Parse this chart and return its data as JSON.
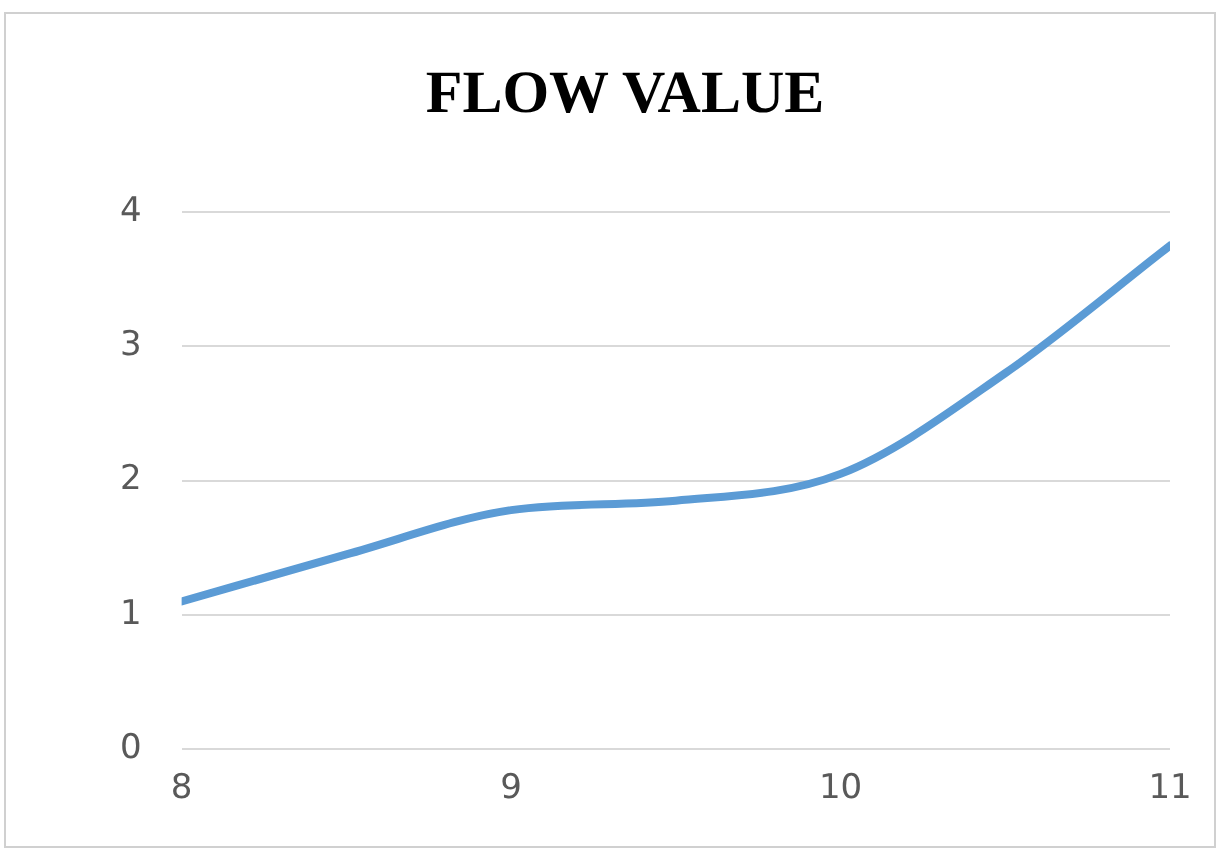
{
  "chart_data": {
    "type": "line",
    "title": "FLOW VALUE",
    "x": [
      8,
      8.5,
      9,
      9.5,
      10,
      10.5,
      11
    ],
    "series": [
      {
        "color": "#5b9bd5",
        "values": [
          1.1,
          1.45,
          1.78,
          1.85,
          2.05,
          2.8,
          3.75
        ]
      }
    ],
    "xlim": [
      8,
      11
    ],
    "xticks": [
      8,
      9,
      10,
      11
    ],
    "ylim": [
      0,
      4
    ],
    "yticks": [
      0,
      1,
      2,
      3,
      4
    ],
    "grid": "y",
    "legend": false,
    "marker": "none",
    "line_style": "solid"
  }
}
